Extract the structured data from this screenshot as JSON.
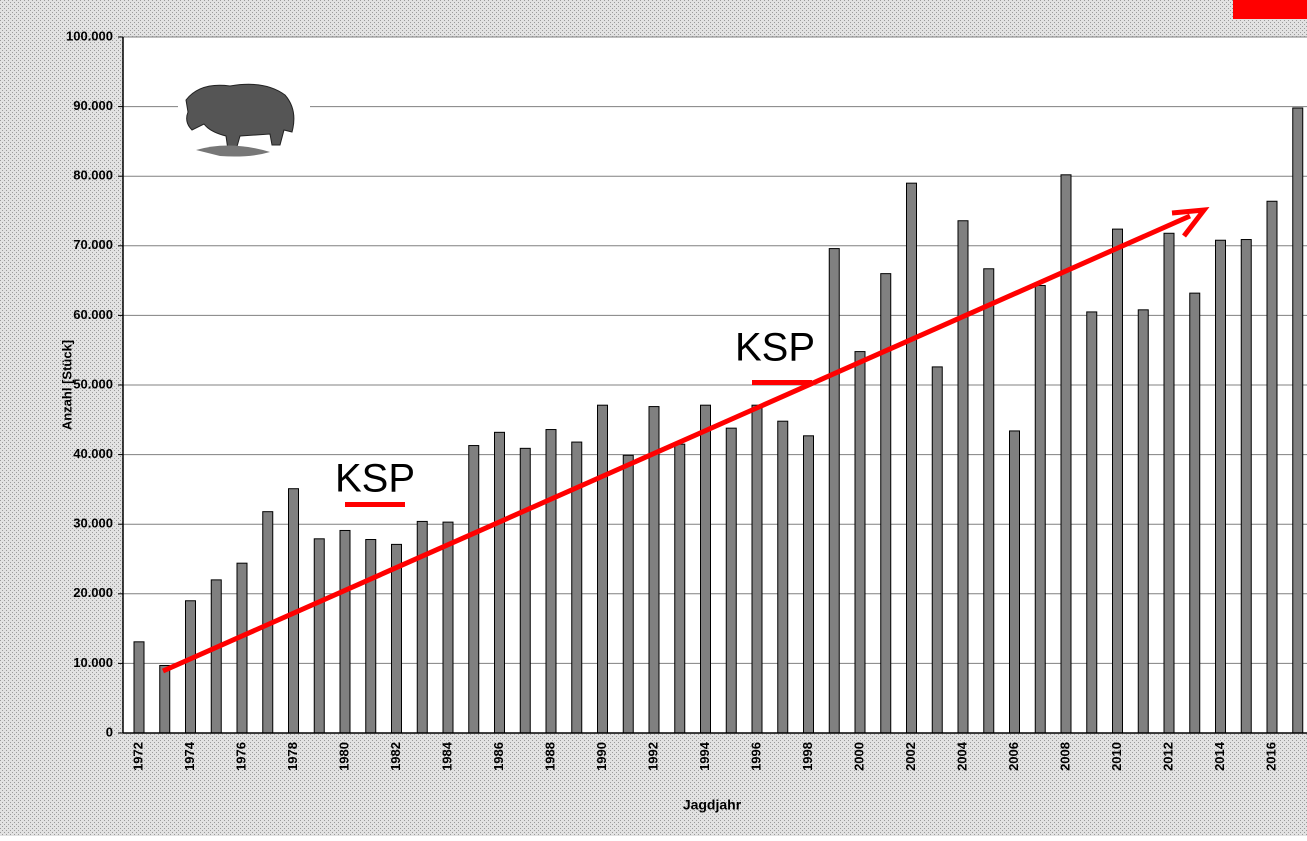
{
  "chart_data": {
    "type": "bar",
    "y_label": "Anzahl [Stück]",
    "x_label": "Jagdjahr",
    "annotations": [
      "KSP",
      "KSP"
    ],
    "categories": [
      "1972",
      null,
      "1974",
      null,
      "1976",
      null,
      "1978",
      null,
      "1980",
      null,
      "1982",
      null,
      "1984",
      null,
      "1986",
      null,
      "1988",
      null,
      "1990",
      null,
      "1992",
      null,
      "1994",
      null,
      "1996",
      null,
      "1998",
      null,
      "2000",
      null,
      "2002",
      null,
      "2004",
      null,
      "2006",
      null,
      "2008",
      null,
      "2010",
      null,
      "2012",
      null,
      "2014",
      null,
      "2016",
      null
    ],
    "values": [
      13100,
      9700,
      19000,
      22000,
      24400,
      31800,
      35100,
      27900,
      29100,
      27800,
      27100,
      30400,
      30300,
      41300,
      43200,
      40900,
      43600,
      41800,
      47100,
      39900,
      46900,
      41500,
      47100,
      43800,
      47100,
      44800,
      42700,
      69600,
      54800,
      66000,
      79000,
      52600,
      73600,
      66700,
      43400,
      64300,
      80200,
      60500,
      72400,
      60800,
      71800,
      63200,
      70800,
      70900,
      76400,
      89800
    ],
    "color": "#808080",
    "ylim": [
      0,
      100000
    ],
    "yticks": [
      0,
      {
        "value": 10000,
        "label": "10.000"
      },
      {
        "value": 20000,
        "label": "20.000"
      },
      {
        "value": 30000,
        "label": "30.000"
      },
      {
        "value": 40000,
        "label": "40.000"
      },
      {
        "value": 50000,
        "label": "50.000"
      },
      {
        "value": 60000,
        "label": "60.000"
      },
      {
        "value": 70000,
        "label": "70.000"
      },
      {
        "value": 80000,
        "label": "80.000"
      },
      {
        "value": 90000,
        "label": "90.000"
      },
      {
        "value": 100000,
        "label": "100.000"
      }
    ],
    "grid": true
  }
}
